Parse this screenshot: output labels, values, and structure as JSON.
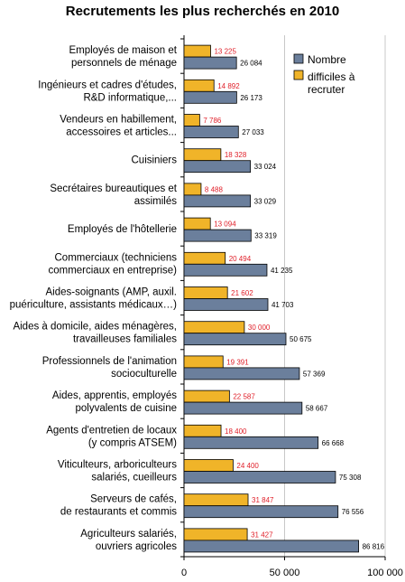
{
  "chart_data": {
    "type": "bar",
    "orientation": "horizontal",
    "title": "Recrutements les plus recherchés en 2010",
    "xlim": [
      0,
      100000
    ],
    "x_ticks": [
      "0",
      "50 000",
      "100 000"
    ],
    "grid": "vertical gridlines",
    "legend_position": "top-right",
    "categories": [
      [
        "Employés de maison et",
        "personnels de ménage"
      ],
      [
        "Ingénieurs et cadres d'études,",
        "R&D informatique,..."
      ],
      [
        "Vendeurs en habillement,",
        "accessoires et articles..."
      ],
      [
        "Cuisiniers"
      ],
      [
        "Secrétaires bureautiques et",
        "assimilés"
      ],
      [
        "Employés de l'hôtellerie"
      ],
      [
        "Commerciaux (techniciens",
        "commerciaux en entreprise)"
      ],
      [
        "Aides-soignants (AMP, auxil.",
        "puériculture, assistants médicaux…)"
      ],
      [
        "Aides à domicile, aides ménagères,",
        "travailleuses familiales"
      ],
      [
        "Professionnels de l'animation",
        "socioculturelle"
      ],
      [
        "Aides, apprentis, employés",
        "polyvalents de cuisine"
      ],
      [
        "Agents d'entretien de locaux",
        "(y compris ATSEM)"
      ],
      [
        "Viticulteurs, arboriculteurs",
        "salariés, cueilleurs"
      ],
      [
        "Serveurs de cafés,",
        "de restaurants et commis"
      ],
      [
        "Agriculteurs salariés,",
        "ouvriers agricoles"
      ]
    ],
    "series": [
      {
        "name": "Nombre",
        "color": "#6b7f9c",
        "values": [
          26084,
          26173,
          27033,
          33024,
          33029,
          33319,
          41235,
          41703,
          50675,
          57369,
          58667,
          66668,
          75308,
          76556,
          86816
        ],
        "labels": [
          "26 084",
          "26 173",
          "27 033",
          "33 024",
          "33 029",
          "33 319",
          "41 235",
          "41 703",
          "50 675",
          "57 369",
          "58 667",
          "66 668",
          "75 308",
          "76 556",
          "86 816"
        ]
      },
      {
        "name": [
          "difficiles à",
          "recruter"
        ],
        "color": "#f0b429",
        "label_color": "#e0202a",
        "values": [
          13225,
          14892,
          7786,
          18328,
          8488,
          13094,
          20494,
          21602,
          30000,
          19391,
          22587,
          18400,
          24400,
          31847,
          31427
        ],
        "labels": [
          "13 225",
          "14 892",
          "7 786",
          "18 328",
          "8 488",
          "13 094",
          "20 494",
          "21 602",
          "30 000",
          "19 391",
          "22 587",
          "18 400",
          "24 400",
          "31 847",
          "31 427"
        ]
      }
    ]
  }
}
